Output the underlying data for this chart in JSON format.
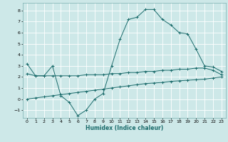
{
  "xlabel": "Humidex (Indice chaleur)",
  "background_color": "#cde8e8",
  "grid_color": "#ffffff",
  "line_color": "#1a6b6b",
  "xlim": [
    -0.5,
    23.5
  ],
  "ylim": [
    -1.7,
    8.7
  ],
  "xticks": [
    0,
    1,
    2,
    3,
    4,
    5,
    6,
    7,
    8,
    9,
    10,
    11,
    12,
    13,
    14,
    15,
    16,
    17,
    18,
    19,
    20,
    21,
    22,
    23
  ],
  "yticks": [
    -1,
    0,
    1,
    2,
    3,
    4,
    5,
    6,
    7,
    8
  ],
  "line_main_x": [
    0,
    1,
    2,
    3,
    4,
    5,
    6,
    7,
    8,
    9,
    10,
    11,
    12,
    13,
    14,
    15,
    16,
    17,
    18,
    19,
    20,
    21,
    22,
    23
  ],
  "line_main_y": [
    3.2,
    2.1,
    2.1,
    3.0,
    0.3,
    -0.3,
    -1.5,
    -1.0,
    0.0,
    0.5,
    3.0,
    5.4,
    7.2,
    7.4,
    8.1,
    8.1,
    7.2,
    6.7,
    6.0,
    5.9,
    4.5,
    3.0,
    2.9,
    2.5
  ],
  "line_mid_x": [
    0,
    1,
    2,
    3,
    4,
    5,
    6,
    7,
    8,
    9,
    10,
    11,
    12,
    13,
    14,
    15,
    16,
    17,
    18,
    19,
    20,
    21,
    22,
    23
  ],
  "line_mid_y": [
    2.3,
    2.1,
    2.1,
    2.1,
    2.1,
    2.1,
    2.1,
    2.2,
    2.2,
    2.2,
    2.3,
    2.3,
    2.4,
    2.4,
    2.5,
    2.5,
    2.6,
    2.6,
    2.7,
    2.7,
    2.8,
    2.8,
    2.6,
    2.2
  ],
  "line_bot_x": [
    0,
    1,
    2,
    3,
    4,
    5,
    6,
    7,
    8,
    9,
    10,
    11,
    12,
    13,
    14,
    15,
    16,
    17,
    18,
    19,
    20,
    21,
    22,
    23
  ],
  "line_bot_y": [
    0.0,
    0.1,
    0.2,
    0.3,
    0.4,
    0.5,
    0.6,
    0.7,
    0.8,
    0.9,
    1.0,
    1.1,
    1.2,
    1.3,
    1.4,
    1.45,
    1.5,
    1.6,
    1.65,
    1.7,
    1.75,
    1.8,
    1.9,
    2.0
  ]
}
